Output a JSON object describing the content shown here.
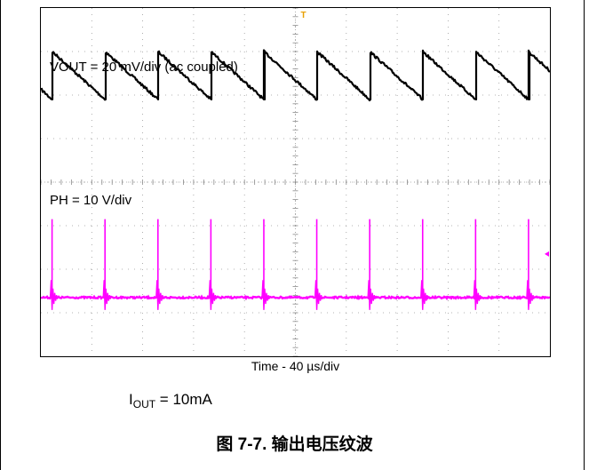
{
  "chart_data": {
    "type": "line",
    "title": "",
    "xlabel": "Time - 40 µs/div",
    "ylabel": "",
    "grid": true,
    "grid_divisions": {
      "x": 10,
      "y": 8
    },
    "time_per_div_us": 40,
    "trigger_marker": "T",
    "series": [
      {
        "name": "VOUT = 20 mV/div (ac coupled)",
        "color": "#000000",
        "volts_per_div_mV": 20,
        "waveform": "sawtooth",
        "period_div": 1.04,
        "first_edge_div": 0.22,
        "peak_div": 0.55,
        "trough_div": -0.55
      },
      {
        "name": "PH = 10 V/div",
        "color": "#ff00ff",
        "volts_per_div_V": 10,
        "waveform": "pulse",
        "period_div": 1.04,
        "first_pulse_div": 0.22,
        "pulse_height_div": 1.8,
        "ringing_div": 0.4
      }
    ]
  },
  "labels": {
    "vout": "VOUT = 20 mV/div (ac coupled)",
    "ph": "PH = 10 V/div",
    "time": "Time - 40 µs/div",
    "iout_main": "I",
    "iout_sub": "OUT",
    "iout_value": " = 10mA",
    "caption": "图 7-7. 输出电压纹波"
  }
}
